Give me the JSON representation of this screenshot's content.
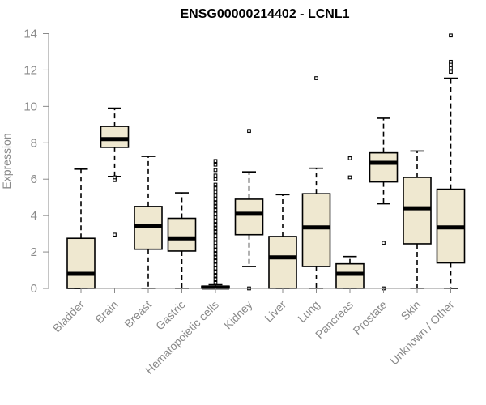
{
  "chart_data": {
    "type": "boxplot",
    "title": "ENSG00000214402 - LCNL1",
    "xlabel": "",
    "ylabel": "Expression",
    "ylim": [
      0,
      14
    ],
    "yticks": [
      0,
      2,
      4,
      6,
      8,
      10,
      12,
      14
    ],
    "box_fill": "#efe8d0",
    "categories": [
      "Bladder",
      "Brain",
      "Breast",
      "Gastric",
      "Hematopoietic cells",
      "Kidney",
      "Liver",
      "Lung",
      "Pancreas",
      "Prostate",
      "Skin",
      "Unknown / Other"
    ],
    "boxes": [
      {
        "name": "Bladder",
        "whisker_low": 0,
        "q1": 0,
        "median": 0.8,
        "q3": 2.75,
        "whisker_high": 6.55,
        "outliers": []
      },
      {
        "name": "Brain",
        "whisker_low": 6.15,
        "q1": 7.75,
        "median": 8.2,
        "q3": 8.9,
        "whisker_high": 9.9,
        "outliers": [
          2.95,
          5.95,
          6.1
        ]
      },
      {
        "name": "Breast",
        "whisker_low": 0,
        "q1": 2.15,
        "median": 3.45,
        "q3": 4.5,
        "whisker_high": 7.25,
        "outliers": []
      },
      {
        "name": "Gastric",
        "whisker_low": 0,
        "q1": 2.05,
        "median": 2.75,
        "q3": 3.85,
        "whisker_high": 5.25,
        "outliers": []
      },
      {
        "name": "Hematopoietic cells",
        "whisker_low": 0,
        "q1": 0,
        "median": 0.05,
        "q3": 0.12,
        "whisker_high": 0.2,
        "outliers": [
          0.3,
          0.5,
          0.7,
          0.9,
          1.1,
          1.3,
          1.5,
          1.7,
          1.9,
          2.1,
          2.3,
          2.5,
          2.7,
          2.9,
          3.1,
          3.3,
          3.5,
          3.7,
          3.9,
          4.1,
          4.3,
          4.5,
          4.7,
          4.9,
          5.1,
          5.3,
          5.5,
          5.7,
          6.0,
          6.2,
          6.5,
          6.8,
          7.0
        ]
      },
      {
        "name": "Kidney",
        "whisker_low": 1.2,
        "q1": 2.95,
        "median": 4.1,
        "q3": 4.9,
        "whisker_high": 6.4,
        "outliers": [
          0,
          8.65
        ]
      },
      {
        "name": "Liver",
        "whisker_low": 0,
        "q1": 0,
        "median": 1.7,
        "q3": 2.85,
        "whisker_high": 5.15,
        "outliers": []
      },
      {
        "name": "Lung",
        "whisker_low": 0,
        "q1": 1.2,
        "median": 3.35,
        "q3": 5.2,
        "whisker_high": 6.6,
        "outliers": [
          11.55
        ]
      },
      {
        "name": "Pancreas",
        "whisker_low": 0,
        "q1": 0,
        "median": 0.8,
        "q3": 1.35,
        "whisker_high": 1.75,
        "outliers": [
          6.1,
          7.15
        ]
      },
      {
        "name": "Prostate",
        "whisker_low": 4.65,
        "q1": 5.85,
        "median": 6.9,
        "q3": 7.45,
        "whisker_high": 9.35,
        "outliers": [
          0,
          2.5
        ]
      },
      {
        "name": "Skin",
        "whisker_low": 0,
        "q1": 2.45,
        "median": 4.4,
        "q3": 6.1,
        "whisker_high": 7.55,
        "outliers": []
      },
      {
        "name": "Unknown / Other",
        "whisker_low": 0,
        "q1": 1.4,
        "median": 3.35,
        "q3": 5.45,
        "whisker_high": 11.55,
        "outliers": [
          11.9,
          12.1,
          12.3,
          12.45,
          13.9
        ]
      }
    ]
  }
}
